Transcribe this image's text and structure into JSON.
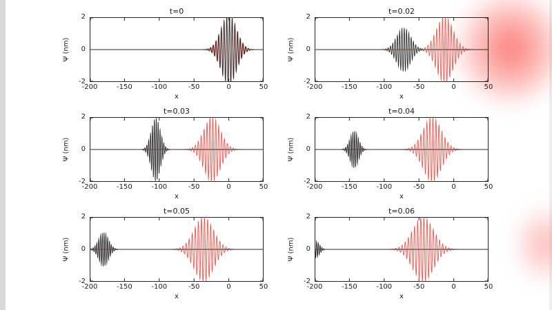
{
  "frame": {
    "background": "#ffffff",
    "left_bar_color": "#d9d9d9",
    "accent_blur_color": "#f84d46"
  },
  "chart_data": {
    "type": "line",
    "description": "Six snapshots of wave packets (black and red traces) propagating left along x at successive times",
    "grid": "2 columns x 3 rows",
    "xlabel": "x",
    "ylabel": "Ψ (nm)",
    "xlim": [
      -200,
      50
    ],
    "ylim": [
      -2,
      2
    ],
    "xticks": [
      -200,
      -150,
      -100,
      -50,
      0,
      50
    ],
    "yticks": [
      -2,
      0,
      2
    ],
    "series_colors": {
      "red": "#f0564e",
      "black": "#2a2a2a"
    },
    "subplots": [
      {
        "title": "t=0",
        "series": [
          {
            "name": "red",
            "center": 0,
            "amplitude": 2.2,
            "sigma": 11,
            "wavenumber": 1.58
          },
          {
            "name": "black",
            "center": 0,
            "amplitude": 2.15,
            "sigma": 11,
            "wavenumber": 1.63
          }
        ]
      },
      {
        "title": "t=0.02",
        "series": [
          {
            "name": "red",
            "center": -13,
            "amplitude": 2.05,
            "sigma": 12,
            "wavenumber": 1.5
          },
          {
            "name": "black",
            "center": -72,
            "amplitude": 1.35,
            "sigma": 10,
            "wavenumber": 1.9
          }
        ]
      },
      {
        "title": "t=0.03",
        "series": [
          {
            "name": "red",
            "center": -24,
            "amplitude": 2.0,
            "sigma": 12,
            "wavenumber": 1.5
          },
          {
            "name": "black",
            "center": -105,
            "amplitude": 1.95,
            "sigma": 6.5,
            "wavenumber": 2.3
          }
        ]
      },
      {
        "title": "t=0.04",
        "series": [
          {
            "name": "red",
            "center": -31,
            "amplitude": 2.0,
            "sigma": 13,
            "wavenumber": 1.45
          },
          {
            "name": "black",
            "center": -143,
            "amplitude": 1.15,
            "sigma": 6,
            "wavenumber": 2.4
          }
        ]
      },
      {
        "title": "t=0.05",
        "series": [
          {
            "name": "red",
            "center": -36,
            "amplitude": 2.0,
            "sigma": 14,
            "wavenumber": 1.42
          },
          {
            "name": "black",
            "center": -180,
            "amplitude": 1.05,
            "sigma": 7,
            "wavenumber": 2.4
          }
        ]
      },
      {
        "title": "t=0.06",
        "series": [
          {
            "name": "red",
            "center": -44,
            "amplitude": 2.0,
            "sigma": 15,
            "wavenumber": 1.4
          },
          {
            "name": "black",
            "center": -198,
            "amplitude": 0.5,
            "sigma": 5,
            "wavenumber": 2.4
          }
        ]
      }
    ]
  }
}
